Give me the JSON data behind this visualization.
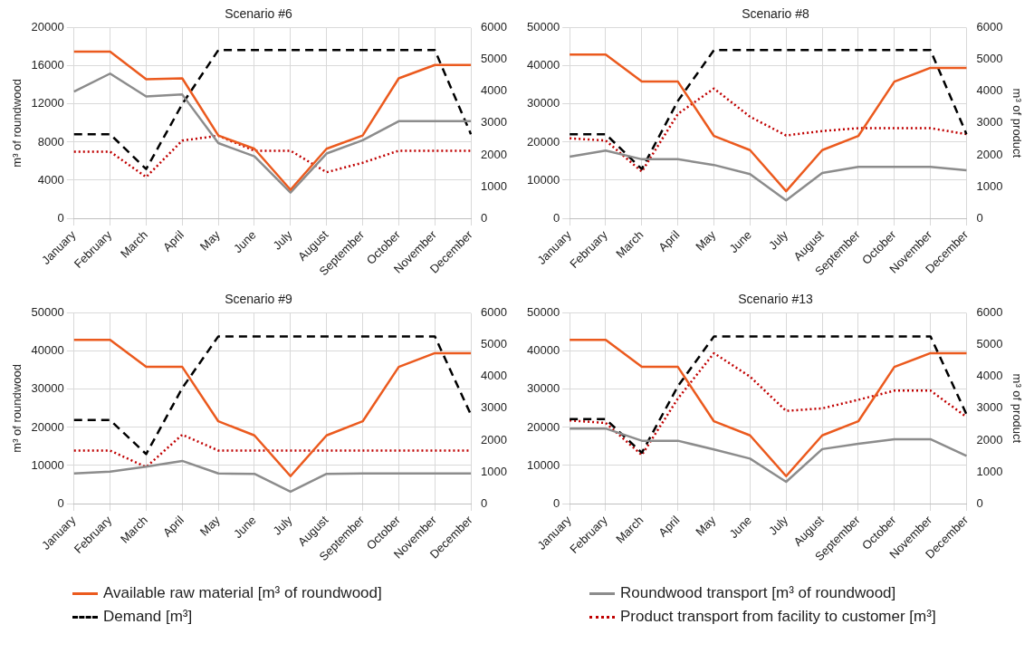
{
  "chart_data": [
    {
      "type": "line",
      "title": "Scenario #6",
      "ylabel": "m³ of roundwood",
      "categories": [
        "January",
        "February",
        "March",
        "April",
        "May",
        "June",
        "July",
        "August",
        "September",
        "October",
        "November",
        "December"
      ],
      "ylim": [
        0,
        20000
      ],
      "yticks": [
        0,
        4000,
        8000,
        12000,
        16000,
        20000
      ],
      "y2lim": [
        0,
        6000
      ],
      "y2ticks": [
        0,
        1000,
        2000,
        3000,
        4000,
        5000,
        6000
      ],
      "grid": true,
      "series": [
        {
          "color": "#eb5a1e",
          "line_style": "solid",
          "values": [
            17500,
            17500,
            14600,
            14700,
            8700,
            7300,
            3000,
            7300,
            8700,
            14700,
            16100,
            16100
          ]
        },
        {
          "color": "#8c8c8c",
          "line_style": "solid",
          "values": [
            13300,
            15200,
            12800,
            13000,
            7900,
            6500,
            2700,
            6800,
            8200,
            10200,
            10200,
            10200
          ]
        },
        {
          "color": "#000000",
          "line_style": "dashed",
          "axis": "y2",
          "values": [
            2650,
            2650,
            1550,
            3600,
            5300,
            5300,
            5300,
            5300,
            5300,
            5300,
            5300,
            2650
          ]
        },
        {
          "color": "#c00000",
          "line_style": "dotted",
          "axis": "y2",
          "values": [
            2100,
            2100,
            1300,
            2450,
            2600,
            2130,
            2130,
            1450,
            1750,
            2130,
            2130,
            2130
          ]
        }
      ]
    },
    {
      "type": "line",
      "title": "Scenario #8",
      "y2label": "m³ of product",
      "categories": [
        "January",
        "February",
        "March",
        "April",
        "May",
        "June",
        "July",
        "August",
        "September",
        "October",
        "November",
        "December"
      ],
      "ylim": [
        0,
        50000
      ],
      "yticks": [
        0,
        10000,
        20000,
        30000,
        40000,
        50000
      ],
      "y2lim": [
        0,
        6000
      ],
      "y2ticks": [
        0,
        1000,
        2000,
        3000,
        4000,
        5000,
        6000
      ],
      "grid": true,
      "series": [
        {
          "color": "#eb5a1e",
          "line_style": "solid",
          "values": [
            43000,
            43000,
            35900,
            35900,
            21600,
            17900,
            7100,
            17900,
            21600,
            35900,
            39500,
            39500
          ]
        },
        {
          "color": "#8c8c8c",
          "line_style": "solid",
          "values": [
            16200,
            17800,
            15500,
            15500,
            14000,
            11600,
            4700,
            11900,
            13500,
            13500,
            13500,
            12600
          ]
        },
        {
          "color": "#000000",
          "line_style": "dashed",
          "axis": "y2",
          "values": [
            2650,
            2650,
            1550,
            3700,
            5300,
            5300,
            5300,
            5300,
            5300,
            5300,
            5300,
            2650
          ]
        },
        {
          "color": "#c00000",
          "line_style": "dotted",
          "axis": "y2",
          "values": [
            2520,
            2450,
            1470,
            3290,
            4090,
            3200,
            2610,
            2750,
            2840,
            2840,
            2840,
            2650
          ]
        }
      ]
    },
    {
      "type": "line",
      "title": "Scenario #9",
      "ylabel": "m³ of roundwood",
      "categories": [
        "January",
        "February",
        "March",
        "April",
        "May",
        "June",
        "July",
        "August",
        "September",
        "October",
        "November",
        "December"
      ],
      "ylim": [
        0,
        50000
      ],
      "yticks": [
        0,
        10000,
        20000,
        30000,
        40000,
        50000
      ],
      "y2lim": [
        0,
        6000
      ],
      "y2ticks": [
        0,
        1000,
        2000,
        3000,
        4000,
        5000,
        6000
      ],
      "grid": true,
      "series": [
        {
          "color": "#eb5a1e",
          "line_style": "solid",
          "values": [
            43000,
            43000,
            35900,
            35900,
            21600,
            17900,
            7200,
            17900,
            21600,
            35900,
            39500,
            39500
          ]
        },
        {
          "color": "#8c8c8c",
          "line_style": "solid",
          "values": [
            7900,
            8400,
            9700,
            11200,
            7900,
            7800,
            3100,
            7800,
            7900,
            7900,
            7900,
            7900
          ]
        },
        {
          "color": "#000000",
          "line_style": "dashed",
          "axis": "y2",
          "values": [
            2630,
            2630,
            1560,
            3640,
            5270,
            5270,
            5270,
            5270,
            5270,
            5270,
            5270,
            2800
          ]
        },
        {
          "color": "#c00000",
          "line_style": "dotted",
          "axis": "y2",
          "values": [
            1670,
            1670,
            1150,
            2170,
            1670,
            1670,
            1670,
            1670,
            1670,
            1670,
            1670,
            1670
          ]
        }
      ]
    },
    {
      "type": "line",
      "title": "Scenario #13",
      "y2label": "m³ of product",
      "categories": [
        "January",
        "February",
        "March",
        "April",
        "May",
        "June",
        "July",
        "August",
        "September",
        "October",
        "November",
        "December"
      ],
      "ylim": [
        0,
        50000
      ],
      "yticks": [
        0,
        10000,
        20000,
        30000,
        40000,
        50000
      ],
      "y2lim": [
        0,
        6000
      ],
      "y2ticks": [
        0,
        1000,
        2000,
        3000,
        4000,
        5000,
        6000
      ],
      "grid": true,
      "legend": "bottom",
      "series": [
        {
          "name": "Available raw material [m³ of roundwood]",
          "color": "#eb5a1e",
          "line_style": "solid",
          "values": [
            43000,
            43000,
            35900,
            35900,
            21600,
            17900,
            7200,
            17900,
            21600,
            35900,
            39500,
            39500
          ]
        },
        {
          "name": "Roundwood transport [m³ of roundwood]",
          "color": "#8c8c8c",
          "line_style": "solid",
          "values": [
            19700,
            19700,
            16500,
            16500,
            14200,
            11800,
            5700,
            14300,
            15700,
            16900,
            16900,
            12500
          ]
        },
        {
          "name": "Demand [m³]",
          "color": "#000000",
          "line_style": "dashed",
          "axis": "y2",
          "values": [
            2660,
            2660,
            1600,
            3700,
            5270,
            5270,
            5270,
            5270,
            5270,
            5270,
            5270,
            2810
          ]
        },
        {
          "name": "Product transport from facility to customer [m³]",
          "color": "#c00000",
          "line_style": "dotted",
          "axis": "y2",
          "values": [
            2620,
            2540,
            1530,
            3310,
            4740,
            4000,
            2920,
            3000,
            3270,
            3560,
            3560,
            2730
          ]
        }
      ]
    }
  ]
}
